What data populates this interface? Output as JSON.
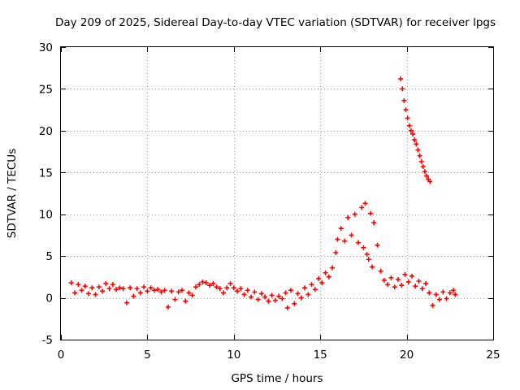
{
  "chart_data": {
    "type": "scatter",
    "title": "Day 209 of 2025, Sidereal Day-to-day VTEC variation (SDTVAR) for receiver lpgs",
    "xlabel": "GPS time / hours",
    "ylabel": "SDTVAR / TECUs",
    "xlim": [
      0,
      25
    ],
    "ylim": [
      -5,
      30
    ],
    "xticks": [
      0,
      5,
      10,
      15,
      20,
      25
    ],
    "yticks": [
      -5,
      0,
      5,
      10,
      15,
      20,
      25,
      30
    ],
    "grid": true,
    "marker": "plus",
    "color": "#ff0000",
    "series": [
      {
        "name": "SDTVAR",
        "points": [
          [
            0.6,
            1.8
          ],
          [
            0.8,
            0.6
          ],
          [
            1.0,
            1.6
          ],
          [
            1.2,
            0.9
          ],
          [
            1.4,
            1.4
          ],
          [
            1.6,
            0.5
          ],
          [
            1.8,
            1.2
          ],
          [
            2.0,
            0.4
          ],
          [
            2.2,
            1.3
          ],
          [
            2.4,
            0.8
          ],
          [
            2.6,
            1.7
          ],
          [
            2.8,
            1.1
          ],
          [
            3.0,
            1.6
          ],
          [
            3.2,
            1.0
          ],
          [
            3.4,
            1.2
          ],
          [
            3.6,
            1.1
          ],
          [
            3.8,
            -0.6
          ],
          [
            4.0,
            1.2
          ],
          [
            4.2,
            0.2
          ],
          [
            4.4,
            1.1
          ],
          [
            4.6,
            0.6
          ],
          [
            4.8,
            1.3
          ],
          [
            5.0,
            0.8
          ],
          [
            5.2,
            1.2
          ],
          [
            5.4,
            0.9
          ],
          [
            5.6,
            1.0
          ],
          [
            5.8,
            0.7
          ],
          [
            6.0,
            0.9
          ],
          [
            6.2,
            -1.1
          ],
          [
            6.4,
            0.8
          ],
          [
            6.6,
            -0.2
          ],
          [
            6.8,
            0.7
          ],
          [
            7.0,
            0.9
          ],
          [
            7.2,
            -0.4
          ],
          [
            7.4,
            0.6
          ],
          [
            7.6,
            0.3
          ],
          [
            7.8,
            1.3
          ],
          [
            8.0,
            1.6
          ],
          [
            8.2,
            1.9
          ],
          [
            8.4,
            1.8
          ],
          [
            8.6,
            1.5
          ],
          [
            8.8,
            1.7
          ],
          [
            9.0,
            1.3
          ],
          [
            9.2,
            1.1
          ],
          [
            9.4,
            0.6
          ],
          [
            9.6,
            1.2
          ],
          [
            9.8,
            1.7
          ],
          [
            10.0,
            1.2
          ],
          [
            10.2,
            0.8
          ],
          [
            10.4,
            1.1
          ],
          [
            10.6,
            0.4
          ],
          [
            10.8,
            0.9
          ],
          [
            11.0,
            0.1
          ],
          [
            11.2,
            0.7
          ],
          [
            11.4,
            -0.2
          ],
          [
            11.6,
            0.5
          ],
          [
            11.8,
            0.1
          ],
          [
            12.0,
            -0.4
          ],
          [
            12.2,
            0.3
          ],
          [
            12.4,
            -0.3
          ],
          [
            12.6,
            0.2
          ],
          [
            12.8,
            -0.1
          ],
          [
            13.0,
            0.6
          ],
          [
            13.1,
            -1.2
          ],
          [
            13.3,
            0.9
          ],
          [
            13.5,
            -0.7
          ],
          [
            13.7,
            0.5
          ],
          [
            13.9,
            0.0
          ],
          [
            14.1,
            1.2
          ],
          [
            14.3,
            0.4
          ],
          [
            14.5,
            1.6
          ],
          [
            14.7,
            1.0
          ],
          [
            14.9,
            2.3
          ],
          [
            15.1,
            1.8
          ],
          [
            15.3,
            3.0
          ],
          [
            15.5,
            2.5
          ],
          [
            15.7,
            3.6
          ],
          [
            15.9,
            5.4
          ],
          [
            16.0,
            7.0
          ],
          [
            16.2,
            8.3
          ],
          [
            16.4,
            6.8
          ],
          [
            16.6,
            9.6
          ],
          [
            16.8,
            7.5
          ],
          [
            17.0,
            10.0
          ],
          [
            17.2,
            6.6
          ],
          [
            17.4,
            10.8
          ],
          [
            17.5,
            6.0
          ],
          [
            17.6,
            11.3
          ],
          [
            17.7,
            5.2
          ],
          [
            17.8,
            4.6
          ],
          [
            17.9,
            10.1
          ],
          [
            18.0,
            3.7
          ],
          [
            18.1,
            9.0
          ],
          [
            18.3,
            6.3
          ],
          [
            18.5,
            3.2
          ],
          [
            18.7,
            2.1
          ],
          [
            18.9,
            1.6
          ],
          [
            19.1,
            2.4
          ],
          [
            19.3,
            1.3
          ],
          [
            19.5,
            2.2
          ],
          [
            19.7,
            1.5
          ],
          [
            19.9,
            2.8
          ],
          [
            20.1,
            1.9
          ],
          [
            20.3,
            2.6
          ],
          [
            20.5,
            1.4
          ],
          [
            20.7,
            2.0
          ],
          [
            20.9,
            1.1
          ],
          [
            21.1,
            1.7
          ],
          [
            21.3,
            0.6
          ],
          [
            21.5,
            -0.9
          ],
          [
            21.7,
            0.4
          ],
          [
            21.9,
            -0.2
          ],
          [
            22.1,
            0.7
          ],
          [
            22.3,
            -0.1
          ],
          [
            22.5,
            0.6
          ],
          [
            22.7,
            0.9
          ],
          [
            22.8,
            0.4
          ],
          [
            19.65,
            26.2
          ],
          [
            19.75,
            25.0
          ],
          [
            19.85,
            23.6
          ],
          [
            19.95,
            22.5
          ],
          [
            20.05,
            21.5
          ],
          [
            20.15,
            20.6
          ],
          [
            20.25,
            20.0
          ],
          [
            20.35,
            19.6
          ],
          [
            20.45,
            18.9
          ],
          [
            20.55,
            18.4
          ],
          [
            20.65,
            17.7
          ],
          [
            20.75,
            17.0
          ],
          [
            20.85,
            16.3
          ],
          [
            20.95,
            15.7
          ],
          [
            21.05,
            15.1
          ],
          [
            21.15,
            14.6
          ],
          [
            21.25,
            14.2
          ],
          [
            21.35,
            13.9
          ]
        ]
      }
    ]
  }
}
